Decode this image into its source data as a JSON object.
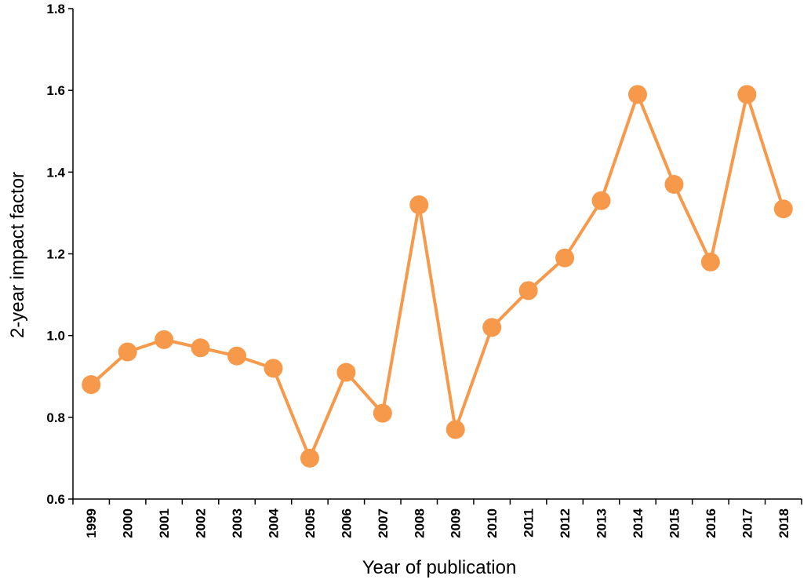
{
  "chart_data": {
    "type": "line",
    "xlabel": "Year of publication",
    "ylabel": "2-year impact factor",
    "ylim": [
      0.6,
      1.8
    ],
    "yticks": [
      "0.6",
      "0.8",
      "1.0",
      "1.2",
      "1.4",
      "1.6",
      "1.8"
    ],
    "categories": [
      "1999",
      "2000",
      "2001",
      "2002",
      "2003",
      "2004",
      "2005",
      "2006",
      "2007",
      "2008",
      "2009",
      "2010",
      "2011",
      "2012",
      "2013",
      "2014",
      "2015",
      "2016",
      "2017",
      "2018"
    ],
    "series": [
      {
        "color": "#F7994A",
        "values": [
          0.88,
          0.96,
          0.99,
          0.97,
          0.95,
          0.92,
          0.7,
          0.91,
          0.81,
          1.32,
          0.77,
          1.02,
          1.11,
          1.19,
          1.33,
          1.59,
          1.37,
          1.18,
          1.59,
          1.31
        ]
      }
    ],
    "grid": false,
    "legend": "none"
  }
}
